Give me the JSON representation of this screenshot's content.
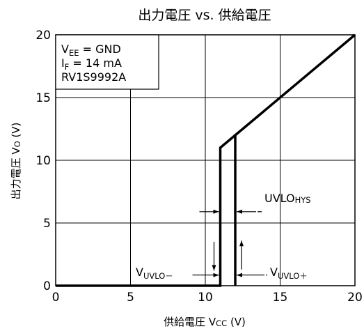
{
  "chart_data": {
    "type": "line",
    "title": "出力電圧 vs. 供給電圧",
    "xlabel": {
      "main": "供給電圧 V",
      "sub": "CC",
      "unit": " (V)"
    },
    "ylabel": {
      "main": "出力電圧 V",
      "sub": "O",
      "unit": " (V)"
    },
    "xlim": [
      0,
      20
    ],
    "ylim": [
      0,
      20
    ],
    "x_ticks": [
      0,
      5,
      10,
      15,
      20
    ],
    "y_ticks": [
      0,
      5,
      10,
      15,
      20
    ],
    "x_tick_labels": [
      "0",
      "5",
      "10",
      "15",
      "20"
    ],
    "y_tick_labels": [
      "0",
      "5",
      "10",
      "15",
      "20"
    ],
    "grid": true,
    "series": [
      {
        "points": [
          [
            0,
            0
          ],
          [
            11,
            0
          ],
          [
            11,
            11
          ],
          [
            12,
            12
          ],
          [
            20,
            20
          ]
        ]
      },
      {
        "points": [
          [
            12,
            0
          ],
          [
            12,
            12
          ]
        ]
      }
    ],
    "conditions": [
      {
        "main": "V",
        "sub": "EE",
        "rest": " = GND"
      },
      {
        "main": "I",
        "sub": "F",
        "rest": " = 14 mA"
      },
      {
        "main": "RV1S9992A",
        "sub": "",
        "rest": ""
      }
    ],
    "annotations": {
      "hysteresis": {
        "main": "UVLO",
        "sub": "HYS"
      },
      "uvlo_minus": {
        "main": "V",
        "sub": "UVLO－"
      },
      "uvlo_plus": {
        "main": "V",
        "sub": "UVLO＋"
      }
    }
  }
}
